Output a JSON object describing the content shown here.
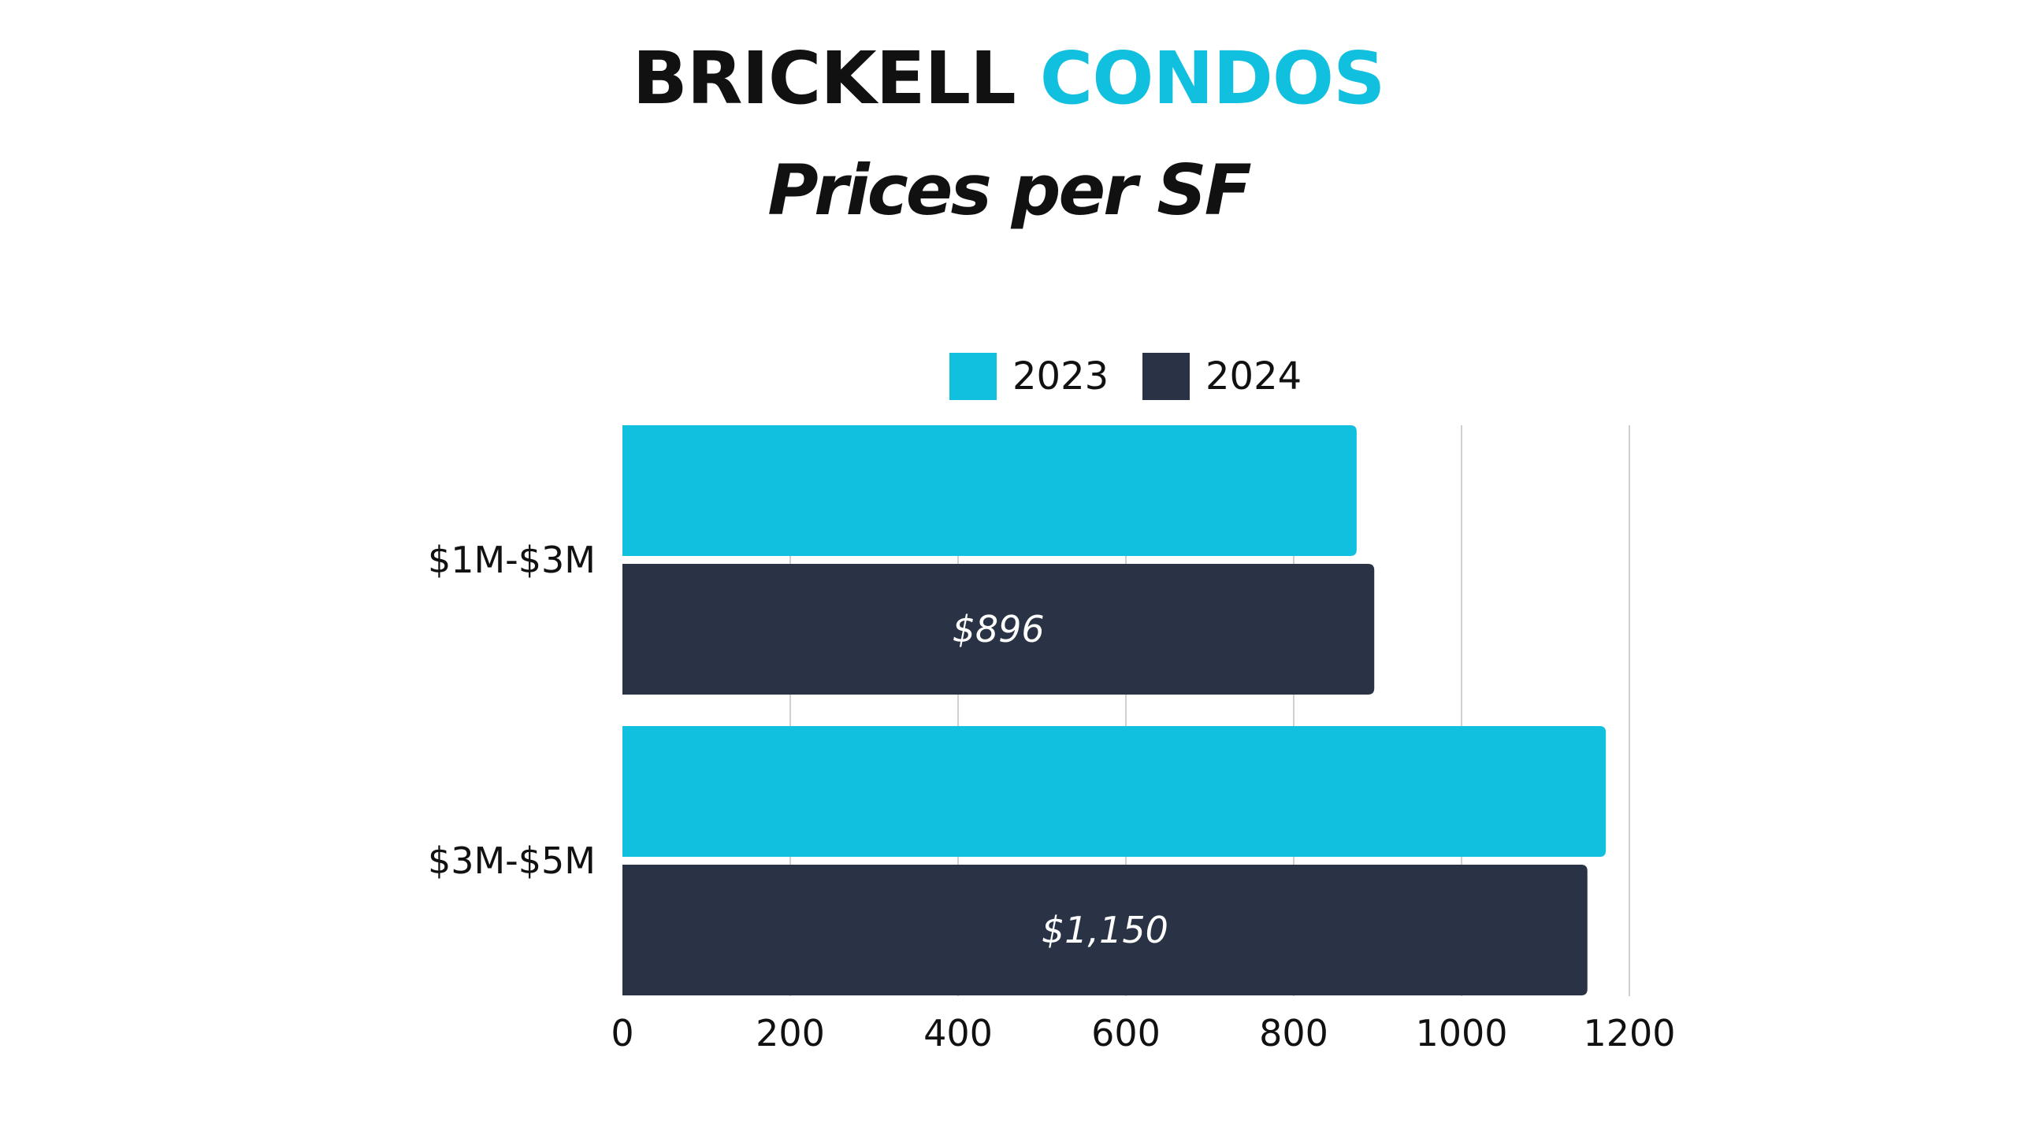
{
  "title": {
    "part1": "BRICKELL",
    "part2": "CONDOS"
  },
  "subtitle": "Prices per SF",
  "colors": {
    "accent": "#10C0DE",
    "dark": "#2A3345",
    "grid": "#D0D0D0",
    "text": "#111111"
  },
  "chart_data": {
    "type": "bar",
    "orientation": "horizontal",
    "categories": [
      "$1M-$3M",
      "$3M-$5M"
    ],
    "series": [
      {
        "name": "2023",
        "color": "#10C0DE",
        "values": [
          875,
          1172
        ],
        "labels": [
          "",
          ""
        ]
      },
      {
        "name": "2024",
        "color": "#2A3345",
        "values": [
          896,
          1150
        ],
        "labels": [
          "$896",
          "$1,150"
        ]
      }
    ],
    "xlim": [
      0,
      1200
    ],
    "xticks": [
      0,
      200,
      400,
      600,
      800,
      1000,
      1200
    ],
    "grid": true,
    "legend": "top-center"
  }
}
